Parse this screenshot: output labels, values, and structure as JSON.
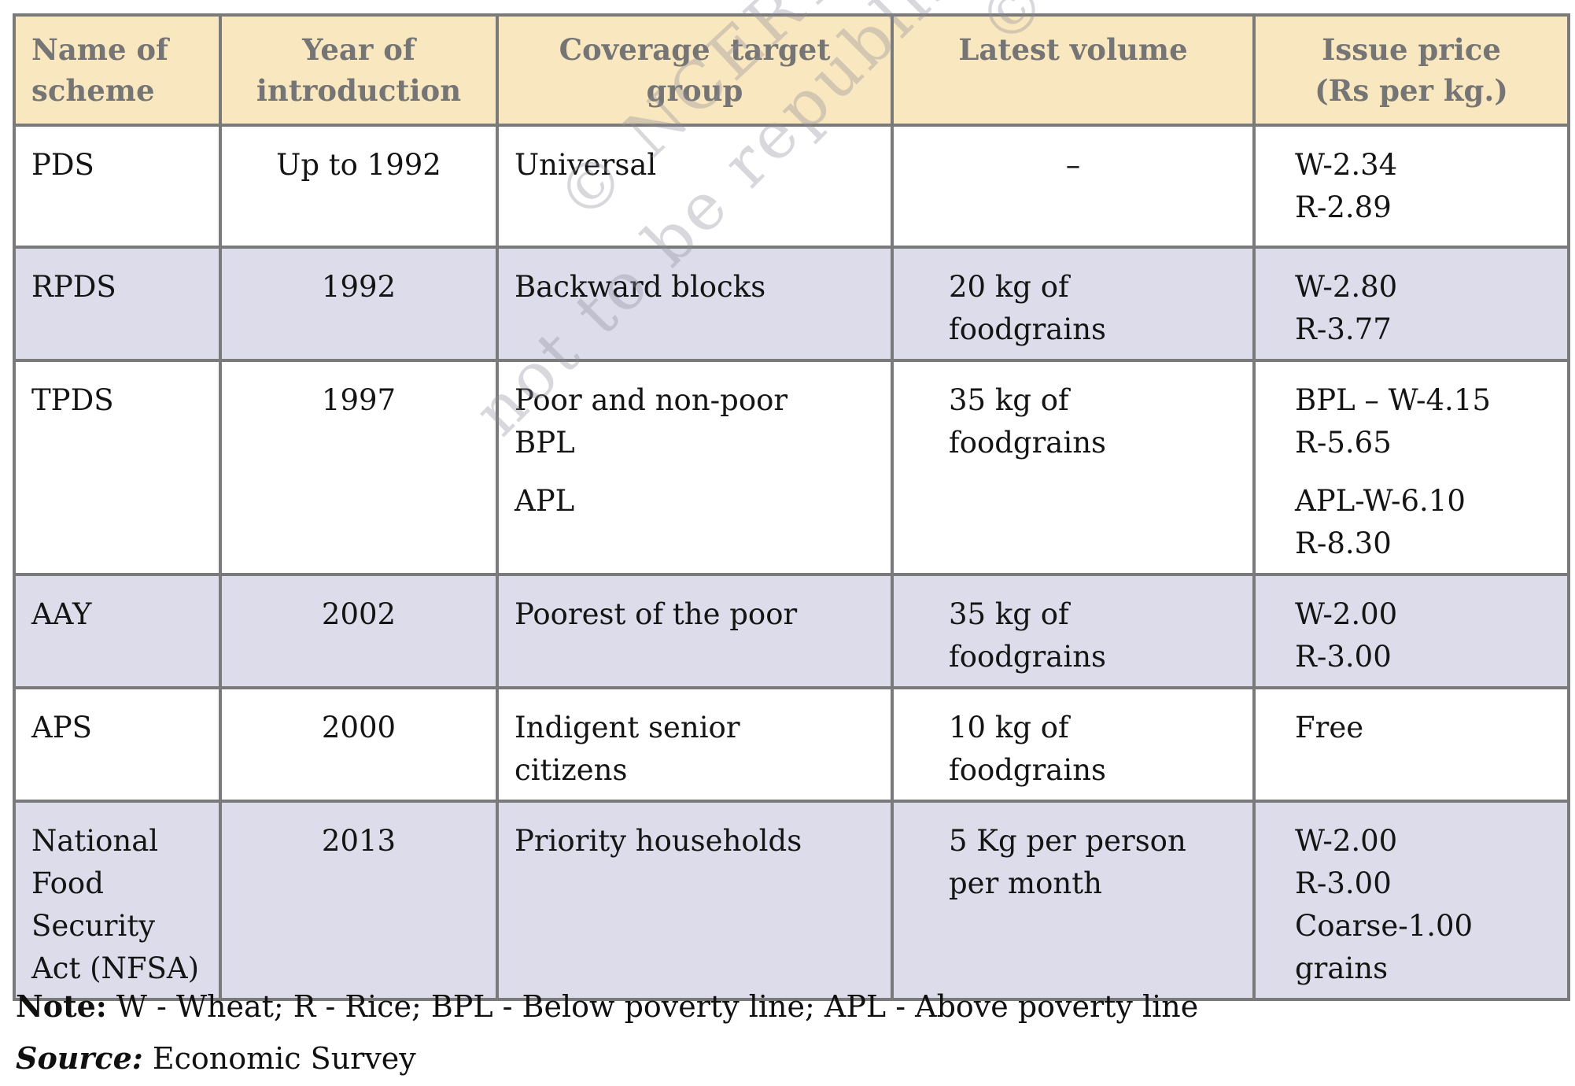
{
  "table": {
    "columns": [
      {
        "label": "Name of\nscheme"
      },
      {
        "label": "Year of\nintroduction"
      },
      {
        "label": "Coverage  target\ngroup"
      },
      {
        "label": "Latest volume"
      },
      {
        "label": "Issue price\n(Rs per kg.)"
      }
    ],
    "rows": [
      {
        "scheme": [
          "PDS"
        ],
        "year": [
          "Up to 1992"
        ],
        "coverage": [
          "Universal"
        ],
        "volume": [
          "–"
        ],
        "price": [
          "W-2.34\nR-2.89"
        ]
      },
      {
        "scheme": [
          "RPDS"
        ],
        "year": [
          "1992"
        ],
        "coverage": [
          "Backward blocks"
        ],
        "volume": [
          "20 kg of\nfoodgrains"
        ],
        "price": [
          "W-2.80\nR-3.77"
        ]
      },
      {
        "scheme": [
          "TPDS"
        ],
        "year": [
          "1997"
        ],
        "coverage": [
          "Poor and non-poor\nBPL",
          "APL"
        ],
        "volume": [
          "35 kg of\nfoodgrains"
        ],
        "price": [
          "BPL – W-4.15\nR-5.65",
          "APL-W-6.10\nR-8.30"
        ]
      },
      {
        "scheme": [
          "AAY"
        ],
        "year": [
          "2002"
        ],
        "coverage": [
          "Poorest of the poor"
        ],
        "volume": [
          "35 kg of\nfoodgrains"
        ],
        "price": [
          "W-2.00\nR-3.00"
        ]
      },
      {
        "scheme": [
          "APS"
        ],
        "year": [
          "2000"
        ],
        "coverage": [
          "Indigent senior\ncitizens"
        ],
        "volume": [
          "10 kg of\nfoodgrains"
        ],
        "price": [
          "Free"
        ]
      },
      {
        "scheme": [
          "National\nFood\nSecurity\nAct (NFSA)"
        ],
        "year": [
          "2013"
        ],
        "coverage": [
          "Priority households"
        ],
        "volume": [
          "5 Kg per person\nper month"
        ],
        "price": [
          "W-2.00\nR-3.00\nCoarse-1.00\ngrains"
        ]
      }
    ]
  },
  "notes": {
    "note_label": "Note:",
    "note_text": " W - Wheat; R - Rice; BPL - Below poverty line; APL - Above poverty line",
    "source_label": "Source:",
    "source_text": " Economic Survey"
  },
  "watermark": {
    "line1": "© NCERT",
    "line2": "not to be republished",
    "fragment": "© NCERT"
  },
  "colors": {
    "header_bg": "#F9E7BF",
    "row_shaded_bg": "#DDDCEA",
    "border": "#7A7A7A",
    "header_text": "#757575",
    "body_text": "#141414"
  }
}
